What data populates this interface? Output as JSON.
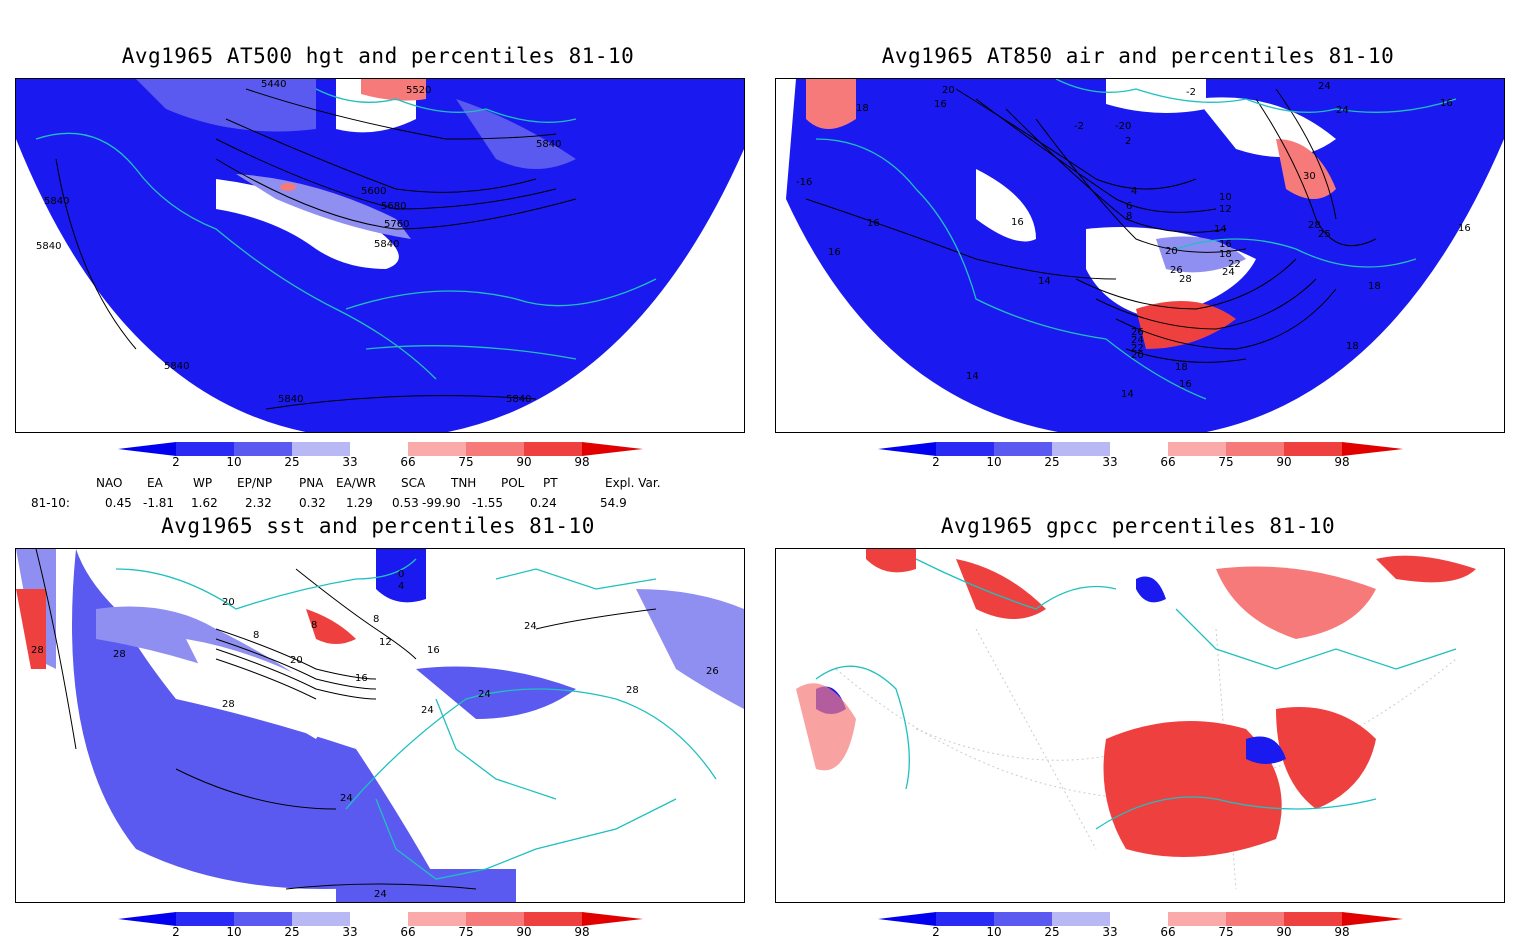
{
  "panels": [
    {
      "id": "p1",
      "title": "Avg1965 AT500 hgt and percentiles 81-10",
      "contour_labels": [
        "5440",
        "5520",
        "5840",
        "5600",
        "5680",
        "5760",
        "5840",
        "5840",
        "5840",
        "5840",
        "5840",
        "5840"
      ]
    },
    {
      "id": "p2",
      "title": "Avg1965 AT850 air and percentiles 81-10",
      "contour_labels": [
        "20",
        "16",
        "18",
        "-2",
        "-2",
        "0",
        "2",
        "-2",
        "24",
        "24",
        "16",
        "-16",
        "16",
        "16",
        "4",
        "6",
        "8",
        "10",
        "12",
        "30",
        "14",
        "14",
        "16",
        "18",
        "28",
        "25",
        "16",
        "20",
        "26",
        "28",
        "22",
        "24",
        "18",
        "26",
        "24",
        "22",
        "20",
        "14",
        "18",
        "16",
        "14",
        "18",
        "18"
      ]
    },
    {
      "id": "p3",
      "title": "Avg1965 sst and percentiles 81-10",
      "contour_labels": [
        "28",
        "28",
        "20",
        "16",
        "16",
        "8",
        "8",
        "12",
        "20",
        "16",
        "24",
        "28",
        "28",
        "26",
        "24",
        "24",
        "24",
        "24",
        "4",
        "0"
      ]
    },
    {
      "id": "p4",
      "title": "Avg1965 gpcc percentiles 81-10",
      "contour_labels": []
    }
  ],
  "colorbar": {
    "labels": [
      "2",
      "10",
      "25",
      "33",
      "66",
      "75",
      "90",
      "98"
    ],
    "colors": {
      "lowest": "#0000ee",
      "low1": "#2a2af5",
      "low2": "#5a5af0",
      "low3": "#8f8ff2",
      "low4": "#b8b8f5",
      "high1": "#fbaaaa",
      "high2": "#f77a7a",
      "high3": "#ef4040",
      "high4": "#e00000"
    }
  },
  "indices": {
    "headers": [
      "NAO",
      "EA",
      "WP",
      "EP/NP",
      "PNA",
      "EA/WR",
      "SCA",
      "TNH",
      "POL",
      "PT",
      "Expl. Var."
    ],
    "row_label": "81-10:",
    "values": [
      "0.45",
      "-1.81",
      "1.62",
      "2.32",
      "0.32",
      "1.29",
      "0.53",
      "-99.90",
      "-1.55",
      "0.24",
      "54.9"
    ]
  },
  "colors": {
    "coast": "#20c0c0",
    "contour": "#000000",
    "blue": "#1a1af0",
    "red": "#e83030"
  }
}
